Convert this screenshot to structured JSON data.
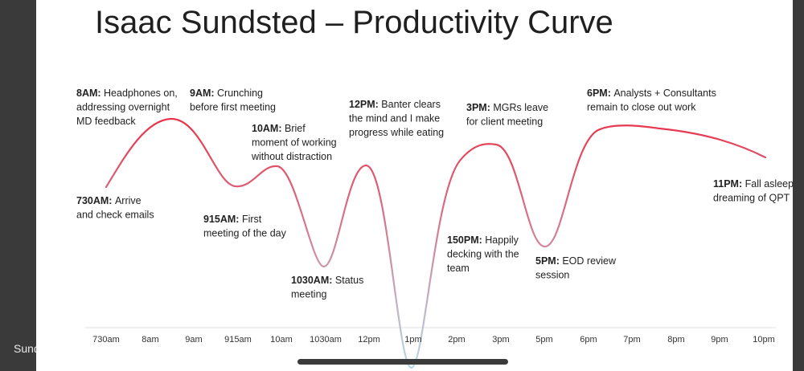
{
  "edge_text": "Sund",
  "chart_data": {
    "type": "line",
    "title": "Isaac Sundsted – Productivity Curve",
    "categories": [
      "730am",
      "8am",
      "9am",
      "915am",
      "10am",
      "1030am",
      "12pm",
      "1pm",
      "2pm",
      "3pm",
      "5pm",
      "6pm",
      "7pm",
      "8pm",
      "9pm",
      "10pm"
    ],
    "grid": false,
    "legend": "none",
    "gradient_colors": {
      "high": "#e8344a",
      "low": "#b8d8ec"
    },
    "annotations": [
      {
        "time": "730AM:",
        "text": [
          "Arrive",
          "and check emails"
        ]
      },
      {
        "time": "8AM:",
        "text": [
          "Headphones on,",
          "addressing overnight",
          "MD feedback"
        ]
      },
      {
        "time": "9AM:",
        "text": [
          "Crunching",
          "before first meeting"
        ]
      },
      {
        "time": "915AM:",
        "text": [
          "First",
          "meeting of the day"
        ]
      },
      {
        "time": "10AM:",
        "text": [
          "Brief",
          "moment of working",
          "without distraction"
        ]
      },
      {
        "time": "1030AM:",
        "text": [
          "Status",
          "meeting"
        ]
      },
      {
        "time": "12PM:",
        "text": [
          "Banter clears",
          "the mind and I make",
          "progress while eating"
        ]
      },
      {
        "time": "150PM:",
        "text": [
          "Happily",
          "decking with the",
          "team"
        ]
      },
      {
        "time": "3PM:",
        "text": [
          "MGRs leave",
          "for client meeting"
        ]
      },
      {
        "time": "5PM:",
        "text": [
          "EOD review",
          "session"
        ]
      },
      {
        "time": "6PM:",
        "text": [
          "Analysts + Consultants",
          "remain to close out work"
        ]
      },
      {
        "time": "11PM:",
        "text": [
          "Fall asleep",
          "dreaming of QPT"
        ]
      }
    ]
  }
}
